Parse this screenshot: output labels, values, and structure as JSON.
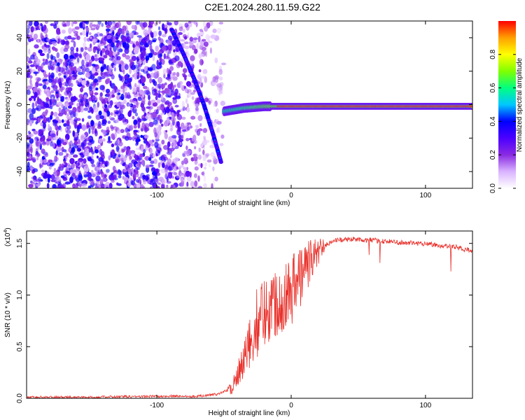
{
  "title": "C2E1.2024.280.11.59.G22",
  "chart_data": [
    {
      "type": "heatmap",
      "title": "C2E1.2024.280.11.59.G22",
      "xlabel": "Height of straight line (km)",
      "ylabel": "Frequency (Hz)",
      "xlim": [
        -197,
        135
      ],
      "ylim": [
        -50,
        50
      ],
      "x_ticks": [
        -100,
        0,
        100
      ],
      "x_tick_labels": [
        "-100",
        "0",
        "100"
      ],
      "y_ticks": [
        -40,
        -20,
        0,
        20,
        40
      ],
      "y_tick_labels": [
        "-40",
        "-20",
        "0",
        "20",
        "40"
      ],
      "grid": false,
      "colorbar": {
        "label": "Normalized spectral amplitude",
        "range": [
          0,
          1
        ],
        "ticks": [
          0.0,
          0.2,
          0.4,
          0.6,
          0.8
        ],
        "tick_labels": [
          "0.0",
          "0.2",
          "0.4",
          "0.6",
          "0.8"
        ],
        "colormap": [
          "#ffffff",
          "#d9b3ff",
          "#8a2be2",
          "#4b00ff",
          "#0000ff",
          "#00c8ff",
          "#00ff80",
          "#80ff00",
          "#ffff00",
          "#ffa000",
          "#ff0000"
        ]
      },
      "traces": [
        {
          "name": "",
          "description": "descending line",
          "x": [
            -89,
            -80,
            -72,
            -65,
            -58,
            -52
          ],
          "y": [
            45,
            30,
            15,
            0,
            -18,
            -35
          ]
        },
        {
          "name": "",
          "description": "flat line",
          "x": [
            -50,
            -35,
            -20,
            0,
            20,
            60,
            100,
            135
          ],
          "y": [
            -4,
            -2,
            -1,
            -1,
            -1,
            -1,
            -1,
            -1
          ]
        }
      ],
      "noise_region": {
        "x": [
          -197,
          -50
        ],
        "y": [
          -50,
          50
        ]
      }
    },
    {
      "type": "line",
      "xlabel": "Height of straight line (km)",
      "ylabel": "SNR (10 * v/v)",
      "y_multiplier": "(x10",
      "y_multiplier_exp": "4",
      "xlim": [
        -197,
        135
      ],
      "ylim": [
        0,
        1.62
      ],
      "x_ticks": [
        -100,
        0,
        100
      ],
      "x_tick_labels": [
        "-100",
        "0",
        "100"
      ],
      "y_ticks": [
        0.0,
        0.5,
        1.0,
        1.5
      ],
      "y_tick_labels": [
        "0.0",
        "0.5",
        "1.0",
        "1.5"
      ],
      "grid": false,
      "series": [
        {
          "name": "",
          "color": "#e8302a",
          "x": [
            -197,
            -150,
            -100,
            -70,
            -55,
            -45,
            -40,
            -35,
            -30,
            -25,
            -20,
            -15,
            -10,
            -5,
            0,
            5,
            10,
            15,
            20,
            25,
            30,
            35,
            40,
            50,
            60,
            70,
            80,
            90,
            100,
            110,
            120,
            130,
            135
          ],
          "y": [
            0.01,
            0.01,
            0.02,
            0.02,
            0.04,
            0.1,
            0.2,
            0.35,
            0.55,
            0.75,
            0.85,
            0.9,
            0.95,
            1.0,
            1.05,
            1.15,
            1.25,
            1.35,
            1.42,
            1.48,
            1.52,
            1.53,
            1.54,
            1.54,
            1.53,
            1.52,
            1.51,
            1.5,
            1.5,
            1.48,
            1.47,
            1.44,
            1.42
          ]
        }
      ]
    }
  ]
}
